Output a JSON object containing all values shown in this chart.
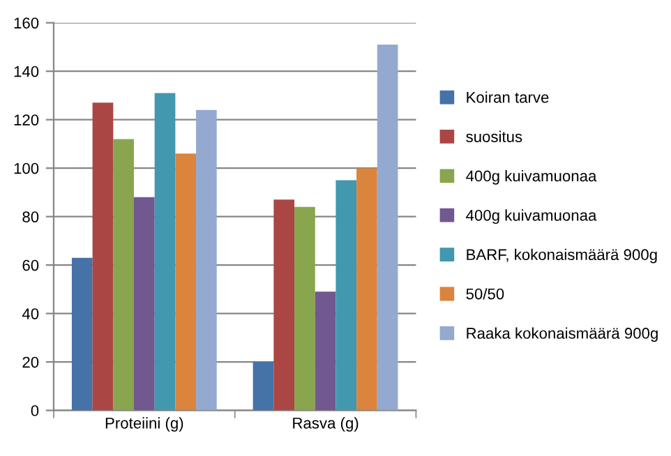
{
  "chart_data": {
    "type": "bar",
    "categories": [
      "Proteiini (g)",
      "Rasva (g)"
    ],
    "series": [
      {
        "name": "Koiran tarve",
        "color": "#4572a7",
        "values": [
          63,
          20
        ]
      },
      {
        "name": "suositus",
        "color": "#aa4643",
        "values": [
          127,
          87
        ]
      },
      {
        "name": "400g kuivamuonaa",
        "color": "#89a54e",
        "values": [
          112,
          84
        ]
      },
      {
        "name": "400g kuivamuonaa",
        "color": "#71588f",
        "values": [
          88,
          49
        ]
      },
      {
        "name": "BARF, kokonaismäärä 900g",
        "color": "#4198af",
        "values": [
          131,
          95
        ]
      },
      {
        "name": "50/50",
        "color": "#db843d",
        "values": [
          106,
          100
        ]
      },
      {
        "name": "Raaka kokonaismäärä 900g",
        "color": "#93a9cf",
        "values": [
          124,
          151
        ]
      }
    ],
    "ylim": [
      0,
      160
    ],
    "yticks": [
      0,
      20,
      40,
      60,
      80,
      100,
      120,
      140,
      160
    ],
    "grid": "y",
    "legend": "right"
  }
}
